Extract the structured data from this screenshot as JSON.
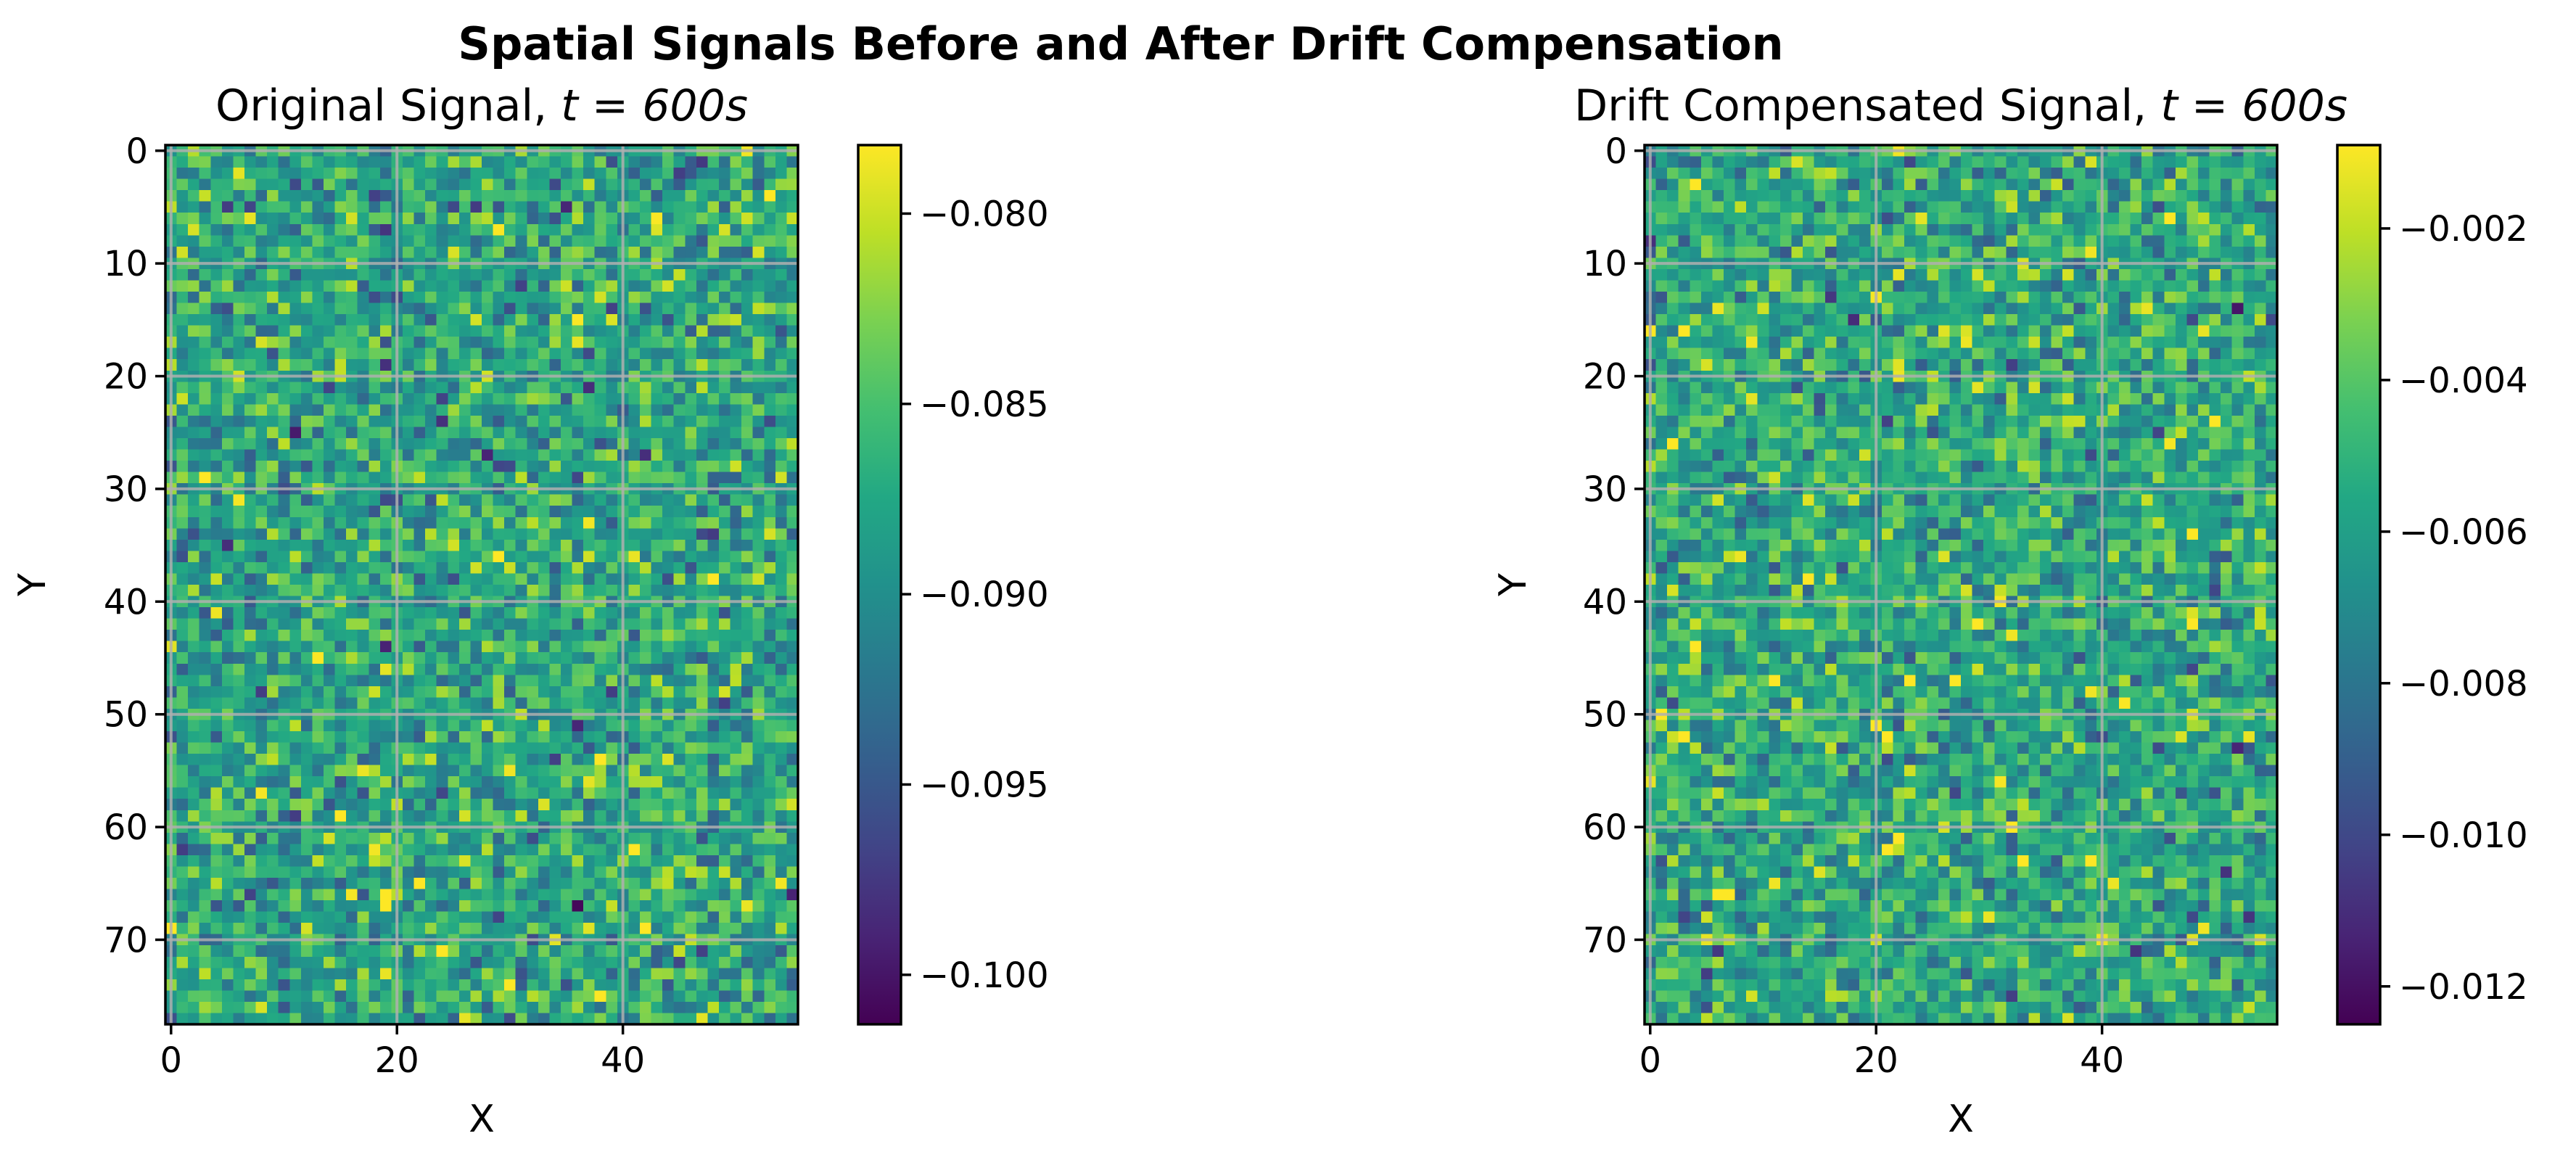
{
  "figure": {
    "title": "Spatial Signals Before and After Drift Compensation"
  },
  "chart_data": [
    {
      "type": "heatmap",
      "title_text": "Original Signal, ",
      "title_math": "t = 600s",
      "xlabel": "X",
      "ylabel": "Y",
      "grid": true,
      "colormap": "viridis",
      "cols": 56,
      "rows": 78,
      "xlim": [
        -0.5,
        55.5
      ],
      "ylim": [
        77.5,
        -0.5
      ],
      "xticks": [
        0,
        20,
        40
      ],
      "xtick_labels": [
        "0",
        "20",
        "40"
      ],
      "yticks": [
        0,
        10,
        20,
        30,
        40,
        50,
        60,
        70
      ],
      "ytick_labels": [
        "0",
        "10",
        "20",
        "30",
        "40",
        "50",
        "60",
        "70"
      ],
      "value_range": [
        -0.1013,
        -0.0782
      ],
      "mean": -0.0875,
      "std": 0.0036,
      "colorbar_ticks": [
        -0.08,
        -0.085,
        -0.09,
        -0.095,
        -0.1
      ],
      "colorbar_labels": [
        "−0.080",
        "−0.085",
        "−0.090",
        "−0.095",
        "−0.100"
      ],
      "seed": 1234
    },
    {
      "type": "heatmap",
      "title_text": "Drift Compensated Signal, ",
      "title_math": "t = 600s",
      "xlabel": "X",
      "ylabel": "Y",
      "grid": true,
      "colormap": "viridis",
      "cols": 56,
      "rows": 78,
      "xlim": [
        -0.5,
        55.5
      ],
      "ylim": [
        77.5,
        -0.5
      ],
      "xticks": [
        0,
        20,
        40
      ],
      "xtick_labels": [
        "0",
        "20",
        "40"
      ],
      "yticks": [
        0,
        10,
        20,
        30,
        40,
        50,
        60,
        70
      ],
      "ytick_labels": [
        "0",
        "10",
        "20",
        "30",
        "40",
        "50",
        "60",
        "70"
      ],
      "value_range": [
        -0.0125,
        -0.0009
      ],
      "mean": -0.0055,
      "std": 0.0018,
      "colorbar_ticks": [
        -0.002,
        -0.004,
        -0.006,
        -0.008,
        -0.01,
        -0.012
      ],
      "colorbar_labels": [
        "−0.002",
        "−0.004",
        "−0.006",
        "−0.008",
        "−0.010",
        "−0.012"
      ],
      "seed": 98765
    }
  ]
}
